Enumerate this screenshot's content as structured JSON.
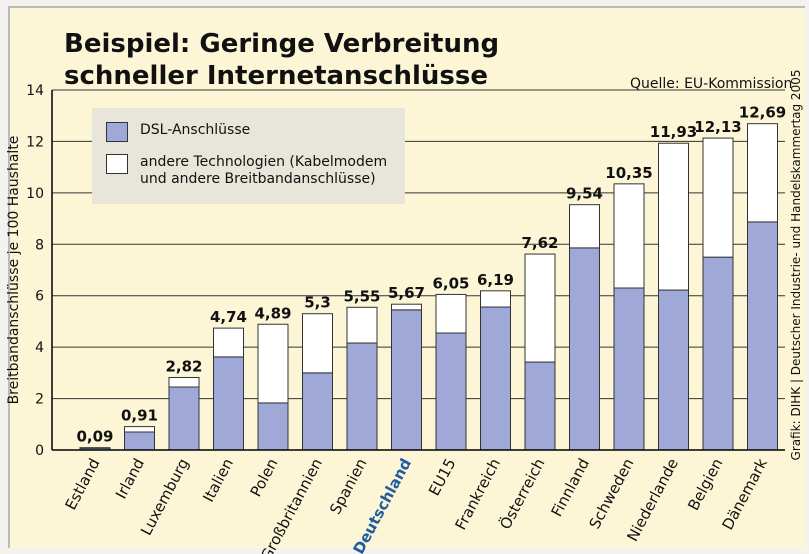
{
  "chart_data": {
    "type": "stacked_bar",
    "title": "Beispiel: Geringe Verbreitung schneller Internetanschlüsse",
    "source": "Quelle: EU-Kommission",
    "credit": "Grafik: DIHK | Deutscher Industrie- und Handelskammertag 2005",
    "y_label": "Breitbandanschlüsse je 100 Haushalte",
    "categories": [
      "Estland",
      "Irland",
      "Luxemburg",
      "Italien",
      "Polen",
      "Großbritannien",
      "Spanien",
      "Deutschland",
      "EU15",
      "Frankreich",
      "Österreich",
      "Finnland",
      "Schweden",
      "Niederlande",
      "Belgien",
      "Dänemark"
    ],
    "highlight_index": 7,
    "highlight_color": "#1f5c9e",
    "series": [
      {
        "name": "DSL-Anschlüsse",
        "color": "#9fa8d6",
        "values": [
          0.07,
          0.7,
          2.45,
          3.62,
          1.83,
          3.0,
          4.16,
          5.45,
          4.55,
          5.56,
          3.42,
          7.86,
          6.3,
          6.22,
          7.5,
          8.87
        ]
      },
      {
        "name": "andere Technologien (Kabelmodem und andere Breitbandanschlüsse)",
        "color": "#ffffff",
        "values": [
          0.02,
          0.21,
          0.37,
          1.12,
          3.06,
          2.3,
          1.39,
          0.22,
          1.5,
          0.63,
          4.2,
          1.68,
          4.05,
          5.71,
          4.63,
          3.82
        ]
      }
    ],
    "totals": [
      0.09,
      0.91,
      2.82,
      4.74,
      4.89,
      5.3,
      5.55,
      5.67,
      6.05,
      6.19,
      7.62,
      9.54,
      10.35,
      11.93,
      12.13,
      12.69
    ],
    "total_labels": [
      "0,09",
      "0,91",
      "2,82",
      "4,74",
      "4,89",
      "5,3",
      "5,55",
      "5,67",
      "6,05",
      "6,19",
      "7,62",
      "9,54",
      "10,35",
      "11,93",
      "12,13",
      "12,69"
    ],
    "ylim": [
      0,
      14
    ],
    "yticks": [
      0,
      2,
      4,
      6,
      8,
      10,
      12,
      14
    ],
    "grid": true
  }
}
